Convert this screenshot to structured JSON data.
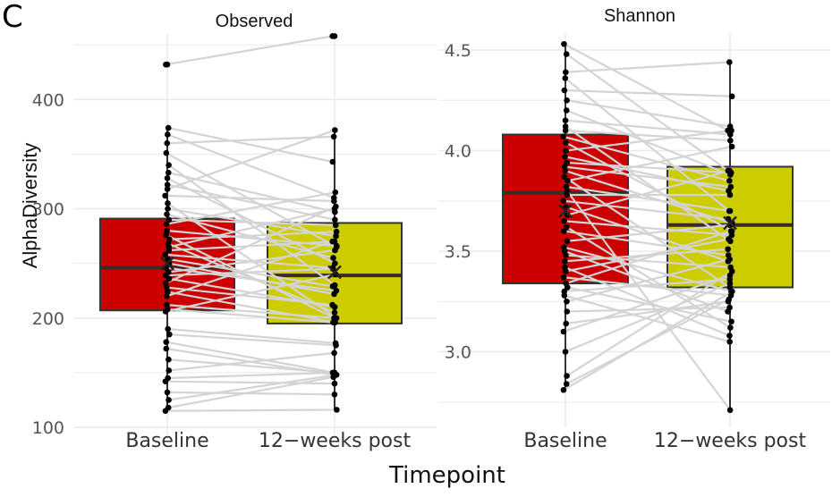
{
  "panel_label": "C",
  "xlabel": "Timepoint",
  "ylabel": "AlphaDiversity",
  "colors": {
    "baseline": "#cc0000",
    "post": "#cccc00",
    "line": "#d4d4d4",
    "point": "#000000",
    "grid": "#ebebeb",
    "box_border": "#333333"
  },
  "chart_data": [
    {
      "type": "box",
      "title": "Observed",
      "categories": [
        "Baseline",
        "12−weeks post"
      ],
      "ylim": [
        100,
        460
      ],
      "yticks": [
        100,
        200,
        300,
        400
      ],
      "boxes": [
        {
          "category": "Baseline",
          "whisker_low": 115,
          "q1": 207,
          "median": 246,
          "q3": 291,
          "whisker_high": 374,
          "mean": 250,
          "outliers": [
            432
          ]
        },
        {
          "category": "12−weeks post",
          "whisker_low": 116,
          "q1": 195,
          "median": 239,
          "q3": 287,
          "whisker_high": 372,
          "mean": 242,
          "outliers": [
            458
          ]
        }
      ],
      "pairs": [
        [
          432,
          458
        ],
        [
          374,
          343
        ],
        [
          368,
          310
        ],
        [
          360,
          366
        ],
        [
          351,
          265
        ],
        [
          340,
          230
        ],
        [
          333,
          297
        ],
        [
          328,
          250
        ],
        [
          322,
          290
        ],
        [
          318,
          372
        ],
        [
          312,
          307
        ],
        [
          305,
          200
        ],
        [
          300,
          275
        ],
        [
          295,
          255
        ],
        [
          290,
          285
        ],
        [
          286,
          315
        ],
        [
          280,
          266
        ],
        [
          276,
          200
        ],
        [
          272,
          279
        ],
        [
          268,
          205
        ],
        [
          265,
          300
        ],
        [
          262,
          270
        ],
        [
          258,
          246
        ],
        [
          254,
          229
        ],
        [
          250,
          222
        ],
        [
          246,
          225
        ],
        [
          242,
          262
        ],
        [
          239,
          245
        ],
        [
          236,
          210
        ],
        [
          232,
          302
        ],
        [
          228,
          212
        ],
        [
          224,
          196
        ],
        [
          220,
          270
        ],
        [
          212,
          200
        ],
        [
          208,
          196
        ],
        [
          206,
          240
        ],
        [
          190,
          177
        ],
        [
          185,
          175
        ],
        [
          178,
          150
        ],
        [
          172,
          148
        ],
        [
          162,
          150
        ],
        [
          152,
          168
        ],
        [
          145,
          150
        ],
        [
          142,
          140
        ],
        [
          132,
          130
        ],
        [
          125,
          148
        ],
        [
          118,
          146
        ],
        [
          115,
          116
        ]
      ]
    },
    {
      "type": "box",
      "title": "Shannon",
      "categories": [
        "Baseline",
        "12−weeks post"
      ],
      "ylim": [
        2.66,
        4.58
      ],
      "yticks": [
        3.0,
        3.5,
        4.0,
        4.5
      ],
      "boxes": [
        {
          "category": "Baseline",
          "whisker_low": 2.81,
          "q1": 3.34,
          "median": 3.79,
          "q3": 4.08,
          "whisker_high": 4.53,
          "mean": 3.7,
          "outliers": []
        },
        {
          "category": "12−weeks post",
          "whisker_low": 2.71,
          "q1": 3.32,
          "median": 3.63,
          "q3": 3.92,
          "whisker_high": 4.44,
          "mean": 3.64,
          "outliers": []
        }
      ],
      "pairs": [
        [
          4.53,
          4.1
        ],
        [
          4.48,
          3.9
        ],
        [
          4.39,
          4.44
        ],
        [
          4.36,
          3.7
        ],
        [
          4.3,
          4.27
        ],
        [
          4.25,
          4.12
        ],
        [
          4.2,
          3.88
        ],
        [
          4.15,
          4.08
        ],
        [
          4.12,
          3.55
        ],
        [
          4.1,
          4.05
        ],
        [
          4.07,
          3.85
        ],
        [
          4.04,
          3.6
        ],
        [
          4.0,
          4.1
        ],
        [
          3.97,
          3.8
        ],
        [
          3.94,
          3.89
        ],
        [
          3.92,
          3.82
        ],
        [
          3.9,
          3.64
        ],
        [
          3.87,
          3.32
        ],
        [
          3.85,
          4.02
        ],
        [
          3.82,
          3.7
        ],
        [
          3.8,
          2.71
        ],
        [
          3.78,
          3.78
        ],
        [
          3.75,
          3.66
        ],
        [
          3.72,
          3.45
        ],
        [
          3.68,
          3.9
        ],
        [
          3.65,
          3.58
        ],
        [
          3.62,
          3.12
        ],
        [
          3.6,
          3.48
        ],
        [
          3.55,
          3.63
        ],
        [
          3.52,
          3.3
        ],
        [
          3.5,
          3.2
        ],
        [
          3.48,
          3.42
        ],
        [
          3.45,
          3.51
        ],
        [
          3.42,
          3.08
        ],
        [
          3.4,
          3.56
        ],
        [
          3.37,
          3.28
        ],
        [
          3.34,
          3.6
        ],
        [
          3.32,
          3.15
        ],
        [
          3.3,
          3.36
        ],
        [
          3.28,
          3.05
        ],
        [
          3.25,
          3.46
        ],
        [
          3.2,
          3.22
        ],
        [
          3.14,
          3.25
        ],
        [
          3.1,
          3.38
        ],
        [
          3.0,
          3.34
        ],
        [
          2.88,
          3.4
        ],
        [
          2.84,
          3.26
        ],
        [
          2.81,
          3.3
        ]
      ]
    }
  ]
}
